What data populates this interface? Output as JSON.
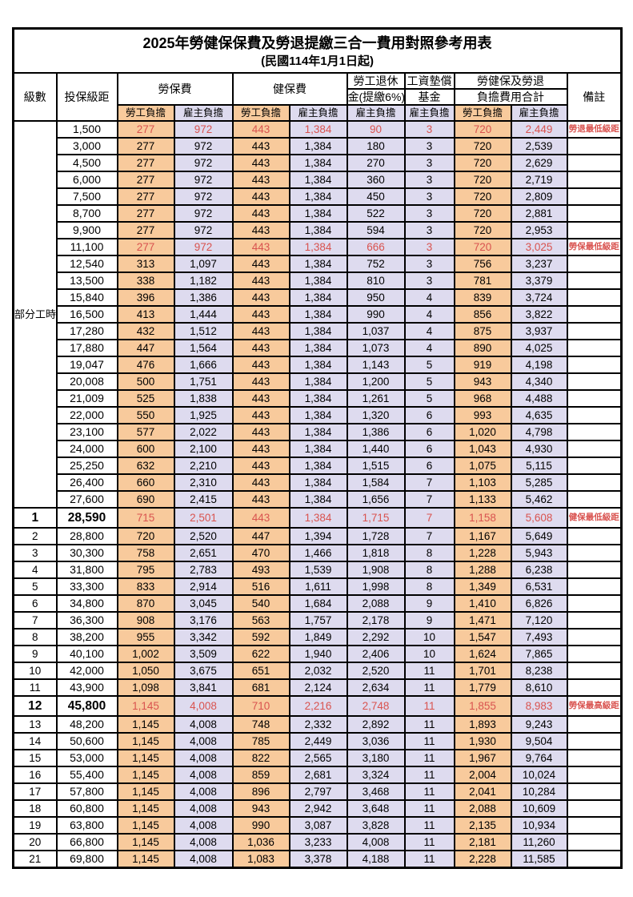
{
  "title": "2025年勞健保保費及勞退提繳三合一費用對照參考用表",
  "subtitle": "(民國114年1月1日起)",
  "colors": {
    "orange": "#F8CA9C",
    "lavender": "#DEDBEF",
    "red": "#D9534F"
  },
  "header": {
    "level": "級數",
    "salary_bracket": "投保級距",
    "labor_insurance": "勞保費",
    "health_insurance": "健保費",
    "pension_line1": "勞工退休",
    "pension_line2": "金(提繳6%)",
    "wage_fund_line1": "工資墊償",
    "wage_fund_line2": "基金",
    "total_line1": "勞健保及勞退",
    "total_line2": "負擔費用合計",
    "employee_share": "勞工負擔",
    "employer_share": "雇主負擔",
    "remark": "備註"
  },
  "part_time_label": "部分工時",
  "part_time_rowspan": 23,
  "row_columns": [
    "level",
    "salary_bracket",
    "labor_emp",
    "labor_er",
    "health_emp",
    "health_er",
    "pension_er",
    "wagefund_er",
    "total_emp",
    "total_er",
    "remark",
    "flags"
  ],
  "rows": [
    [
      "",
      "1,500",
      "277",
      "972",
      "443",
      "1,384",
      "90",
      "3",
      "720",
      "2,449",
      "勞退最低級距",
      "red"
    ],
    [
      "",
      "3,000",
      "277",
      "972",
      "443",
      "1,384",
      "180",
      "3",
      "720",
      "2,539",
      "",
      ""
    ],
    [
      "",
      "4,500",
      "277",
      "972",
      "443",
      "1,384",
      "270",
      "3",
      "720",
      "2,629",
      "",
      ""
    ],
    [
      "",
      "6,000",
      "277",
      "972",
      "443",
      "1,384",
      "360",
      "3",
      "720",
      "2,719",
      "",
      ""
    ],
    [
      "",
      "7,500",
      "277",
      "972",
      "443",
      "1,384",
      "450",
      "3",
      "720",
      "2,809",
      "",
      ""
    ],
    [
      "",
      "8,700",
      "277",
      "972",
      "443",
      "1,384",
      "522",
      "3",
      "720",
      "2,881",
      "",
      ""
    ],
    [
      "",
      "9,900",
      "277",
      "972",
      "443",
      "1,384",
      "594",
      "3",
      "720",
      "2,953",
      "",
      ""
    ],
    [
      "",
      "11,100",
      "277",
      "972",
      "443",
      "1,384",
      "666",
      "3",
      "720",
      "3,025",
      "勞保最低級距",
      "red"
    ],
    [
      "",
      "12,540",
      "313",
      "1,097",
      "443",
      "1,384",
      "752",
      "3",
      "756",
      "3,237",
      "",
      ""
    ],
    [
      "",
      "13,500",
      "338",
      "1,182",
      "443",
      "1,384",
      "810",
      "3",
      "781",
      "3,379",
      "",
      ""
    ],
    [
      "",
      "15,840",
      "396",
      "1,386",
      "443",
      "1,384",
      "950",
      "4",
      "839",
      "3,724",
      "",
      ""
    ],
    [
      "",
      "16,500",
      "413",
      "1,444",
      "443",
      "1,384",
      "990",
      "4",
      "856",
      "3,822",
      "",
      ""
    ],
    [
      "",
      "17,280",
      "432",
      "1,512",
      "443",
      "1,384",
      "1,037",
      "4",
      "875",
      "3,937",
      "",
      ""
    ],
    [
      "",
      "17,880",
      "447",
      "1,564",
      "443",
      "1,384",
      "1,073",
      "4",
      "890",
      "4,025",
      "",
      ""
    ],
    [
      "",
      "19,047",
      "476",
      "1,666",
      "443",
      "1,384",
      "1,143",
      "5",
      "919",
      "4,198",
      "",
      ""
    ],
    [
      "",
      "20,008",
      "500",
      "1,751",
      "443",
      "1,384",
      "1,200",
      "5",
      "943",
      "4,340",
      "",
      ""
    ],
    [
      "",
      "21,009",
      "525",
      "1,838",
      "443",
      "1,384",
      "1,261",
      "5",
      "968",
      "4,488",
      "",
      ""
    ],
    [
      "",
      "22,000",
      "550",
      "1,925",
      "443",
      "1,384",
      "1,320",
      "6",
      "993",
      "4,635",
      "",
      ""
    ],
    [
      "",
      "23,100",
      "577",
      "2,022",
      "443",
      "1,384",
      "1,386",
      "6",
      "1,020",
      "4,798",
      "",
      ""
    ],
    [
      "",
      "24,000",
      "600",
      "2,100",
      "443",
      "1,384",
      "1,440",
      "6",
      "1,043",
      "4,930",
      "",
      ""
    ],
    [
      "",
      "25,250",
      "632",
      "2,210",
      "443",
      "1,384",
      "1,515",
      "6",
      "1,075",
      "5,115",
      "",
      ""
    ],
    [
      "",
      "26,400",
      "660",
      "2,310",
      "443",
      "1,384",
      "1,584",
      "7",
      "1,103",
      "5,285",
      "",
      ""
    ],
    [
      "",
      "27,600",
      "690",
      "2,415",
      "443",
      "1,384",
      "1,656",
      "7",
      "1,133",
      "5,462",
      "",
      ""
    ],
    [
      "1",
      "28,590",
      "715",
      "2,501",
      "443",
      "1,384",
      "1,715",
      "7",
      "1,158",
      "5,608",
      "健保最低級距",
      "red bold"
    ],
    [
      "2",
      "28,800",
      "720",
      "2,520",
      "447",
      "1,394",
      "1,728",
      "7",
      "1,167",
      "5,649",
      "",
      ""
    ],
    [
      "3",
      "30,300",
      "758",
      "2,651",
      "470",
      "1,466",
      "1,818",
      "8",
      "1,228",
      "5,943",
      "",
      ""
    ],
    [
      "4",
      "31,800",
      "795",
      "2,783",
      "493",
      "1,539",
      "1,908",
      "8",
      "1,288",
      "6,238",
      "",
      ""
    ],
    [
      "5",
      "33,300",
      "833",
      "2,914",
      "516",
      "1,611",
      "1,998",
      "8",
      "1,349",
      "6,531",
      "",
      ""
    ],
    [
      "6",
      "34,800",
      "870",
      "3,045",
      "540",
      "1,684",
      "2,088",
      "9",
      "1,410",
      "6,826",
      "",
      ""
    ],
    [
      "7",
      "36,300",
      "908",
      "3,176",
      "563",
      "1,757",
      "2,178",
      "9",
      "1,471",
      "7,120",
      "",
      ""
    ],
    [
      "8",
      "38,200",
      "955",
      "3,342",
      "592",
      "1,849",
      "2,292",
      "10",
      "1,547",
      "7,493",
      "",
      ""
    ],
    [
      "9",
      "40,100",
      "1,002",
      "3,509",
      "622",
      "1,940",
      "2,406",
      "10",
      "1,624",
      "7,865",
      "",
      ""
    ],
    [
      "10",
      "42,000",
      "1,050",
      "3,675",
      "651",
      "2,032",
      "2,520",
      "11",
      "1,701",
      "8,238",
      "",
      ""
    ],
    [
      "11",
      "43,900",
      "1,098",
      "3,841",
      "681",
      "2,124",
      "2,634",
      "11",
      "1,779",
      "8,610",
      "",
      ""
    ],
    [
      "12",
      "45,800",
      "1,145",
      "4,008",
      "710",
      "2,216",
      "2,748",
      "11",
      "1,855",
      "8,983",
      "勞保最高級距",
      "red bold"
    ],
    [
      "13",
      "48,200",
      "1,145",
      "4,008",
      "748",
      "2,332",
      "2,892",
      "11",
      "1,893",
      "9,243",
      "",
      ""
    ],
    [
      "14",
      "50,600",
      "1,145",
      "4,008",
      "785",
      "2,449",
      "3,036",
      "11",
      "1,930",
      "9,504",
      "",
      ""
    ],
    [
      "15",
      "53,000",
      "1,145",
      "4,008",
      "822",
      "2,565",
      "3,180",
      "11",
      "1,967",
      "9,764",
      "",
      ""
    ],
    [
      "16",
      "55,400",
      "1,145",
      "4,008",
      "859",
      "2,681",
      "3,324",
      "11",
      "2,004",
      "10,024",
      "",
      ""
    ],
    [
      "17",
      "57,800",
      "1,145",
      "4,008",
      "896",
      "2,797",
      "3,468",
      "11",
      "2,041",
      "10,284",
      "",
      ""
    ],
    [
      "18",
      "60,800",
      "1,145",
      "4,008",
      "943",
      "2,942",
      "3,648",
      "11",
      "2,088",
      "10,609",
      "",
      ""
    ],
    [
      "19",
      "63,800",
      "1,145",
      "4,008",
      "990",
      "3,087",
      "3,828",
      "11",
      "2,135",
      "10,934",
      "",
      ""
    ],
    [
      "20",
      "66,800",
      "1,145",
      "4,008",
      "1,036",
      "3,233",
      "4,008",
      "11",
      "2,181",
      "11,260",
      "",
      ""
    ],
    [
      "21",
      "69,800",
      "1,145",
      "4,008",
      "1,083",
      "3,378",
      "4,188",
      "11",
      "2,228",
      "11,585",
      "",
      ""
    ]
  ]
}
